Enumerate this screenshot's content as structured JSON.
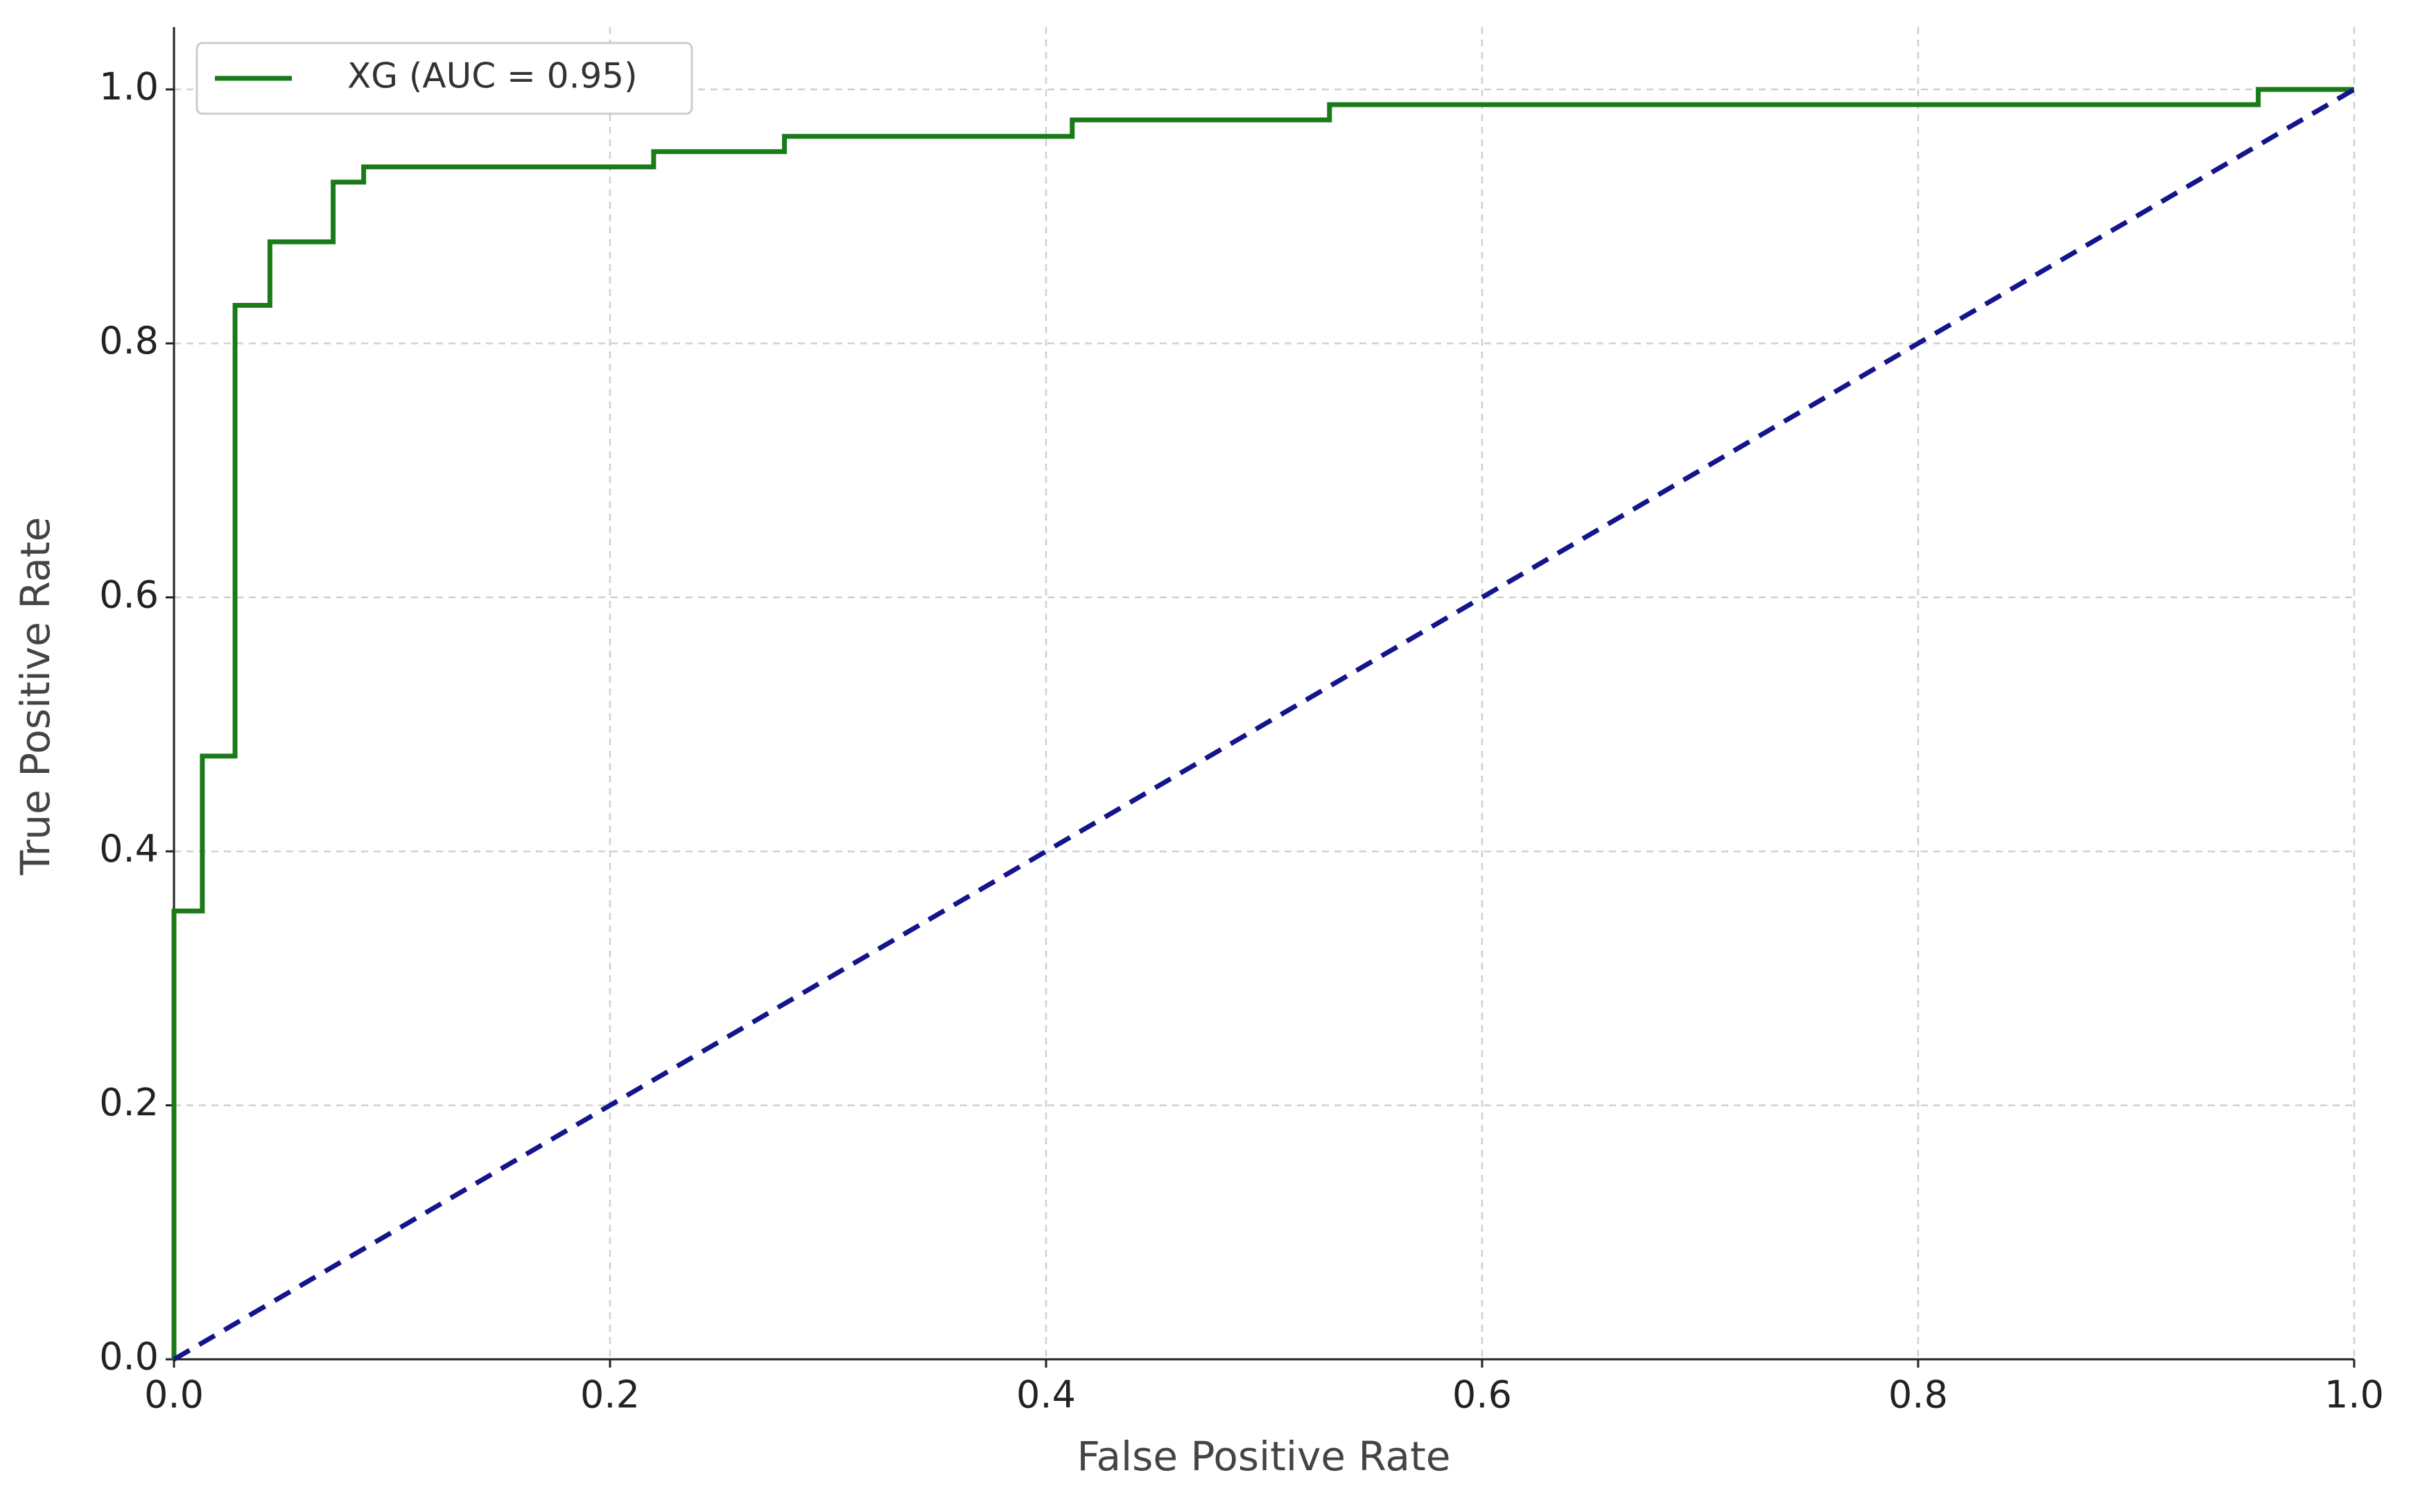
{
  "chart_data": {
    "type": "line",
    "xlabel": "False Positive Rate",
    "ylabel": "True Positive Rate",
    "series": [
      {
        "name": "XG (AUC = 0.95)",
        "color": "#1a7a1a",
        "linestyle": "solid",
        "x": [
          0,
          0,
          0.013,
          0.013,
          0.028,
          0.028,
          0.044,
          0.044,
          0.073,
          0.073,
          0.087,
          0.087,
          0.22,
          0.22,
          0.28,
          0.28,
          0.412,
          0.412,
          0.53,
          0.53,
          0.956,
          0.956,
          1.0
        ],
        "values": [
          0,
          0.353,
          0.353,
          0.475,
          0.475,
          0.83,
          0.83,
          0.88,
          0.88,
          0.927,
          0.927,
          0.939,
          0.939,
          0.951,
          0.951,
          0.963,
          0.963,
          0.976,
          0.976,
          0.988,
          0.988,
          1.0,
          1.0
        ]
      },
      {
        "color": "#14148c",
        "linestyle": "dashed",
        "x": [
          0,
          1.0
        ],
        "values": [
          0,
          1.0
        ]
      }
    ],
    "xlim": [
      0,
      1.0
    ],
    "ylim": [
      0,
      1.0
    ],
    "xticks": [
      {
        "value": 0,
        "label": "0.0"
      },
      0.2,
      0.4,
      0.6,
      0.8,
      {
        "value": 1.0,
        "label": "1.0"
      }
    ],
    "yticks": [
      {
        "value": 0,
        "label": "0.0"
      },
      0.2,
      0.4,
      0.6,
      0.8,
      {
        "value": 1.0,
        "label": "1.0"
      }
    ],
    "grid": true,
    "legend": "upper left"
  }
}
